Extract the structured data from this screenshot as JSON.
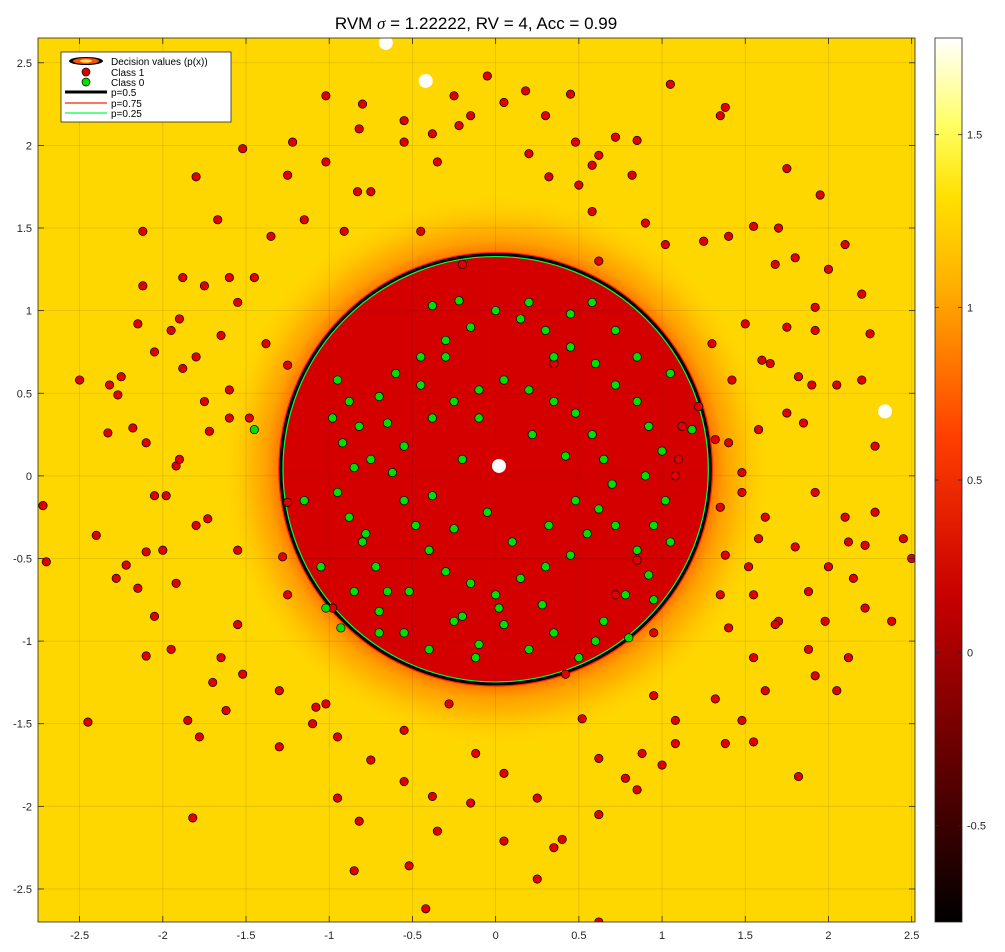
{
  "chart_data": {
    "type": "scatter",
    "title": "RVM σ = 1.22222, RV = 4, Acc = 0.99",
    "title_parts": {
      "prefix": "RVM ",
      "sigma_symbol": "σ",
      "rest": " = 1.22222, RV = 4, Acc = 0.99"
    },
    "xlim": [
      -2.75,
      2.52
    ],
    "ylim": [
      -2.7,
      2.65
    ],
    "xticks": [
      -2.5,
      -2,
      -1.5,
      -1,
      -0.5,
      0,
      0.5,
      1,
      1.5,
      2,
      2.5
    ],
    "xtick_labels": [
      "-2.5",
      "-2",
      "-1.5",
      "-1",
      "-0.5",
      "0",
      "0.5",
      "1",
      "1.5",
      "2",
      "2.5"
    ],
    "yticks": [
      -2.5,
      -2,
      -1.5,
      -1,
      -0.5,
      0,
      0.5,
      1,
      1.5,
      2,
      2.5
    ],
    "ytick_labels": [
      "-2.5",
      "-2",
      "-1.5",
      "-1",
      "-0.5",
      "0",
      "0.5",
      "1",
      "1.5",
      "2",
      "2.5"
    ],
    "grid": true,
    "legend_position": "top-left",
    "legend": [
      "Decision values (p(x))",
      "Class 1",
      "Class 0",
      "p=0.5",
      "p=0.75",
      "p=0.25"
    ],
    "colors": {
      "background_field": "#ffd700",
      "inner_field": "#d40000",
      "class1": "#e00000",
      "class0": "#00e000",
      "contour_p050": "#000000",
      "contour_p075": "#ff2000",
      "contour_p025": "#00ff40"
    },
    "decision_boundary": {
      "center": [
        0.0,
        0.04
      ],
      "radius": 1.29
    },
    "relevance_vectors": [
      [
        -0.66,
        2.62
      ],
      [
        -0.42,
        2.39
      ],
      [
        0.02,
        0.06
      ],
      [
        2.34,
        0.39
      ]
    ],
    "colorbar": {
      "range": [
        -0.78,
        1.78
      ],
      "ticks": [
        -0.5,
        0,
        0.5,
        1,
        1.5
      ],
      "tick_labels": [
        "-0.5",
        "0",
        "0.5",
        "1",
        "1.5"
      ],
      "colormap": "hot"
    },
    "class1_points": [
      [
        -0.82,
        2.1
      ],
      [
        -0.38,
        2.07
      ],
      [
        -0.91,
        1.48
      ],
      [
        -1.8,
        1.81
      ],
      [
        -2.12,
        1.48
      ],
      [
        -1.52,
        1.98
      ],
      [
        -0.83,
        1.72
      ],
      [
        -0.55,
        2.02
      ],
      [
        -1.67,
        1.55
      ],
      [
        -2.12,
        1.15
      ],
      [
        -1.9,
        0.95
      ],
      [
        -2.27,
        0.49
      ],
      [
        -2.33,
        0.26
      ],
      [
        -2.1,
        -0.46
      ],
      [
        -1.98,
        -0.12
      ],
      [
        -2.22,
        -0.54
      ],
      [
        -2.45,
        -1.49
      ],
      [
        -2.5,
        0.58
      ],
      [
        -1.73,
        -0.26
      ],
      [
        -1.55,
        -0.9
      ],
      [
        -1.62,
        -1.42
      ],
      [
        -1.78,
        -1.58
      ],
      [
        -1.3,
        -1.64
      ],
      [
        -1.08,
        -1.4
      ],
      [
        -0.95,
        -1.58
      ],
      [
        -0.82,
        -2.09
      ],
      [
        -0.38,
        -1.94
      ],
      [
        -0.52,
        -2.36
      ],
      [
        -0.12,
        -1.68
      ],
      [
        0.05,
        -2.21
      ],
      [
        0.25,
        -2.44
      ],
      [
        0.35,
        -2.25
      ],
      [
        0.62,
        -1.71
      ],
      [
        0.52,
        -1.47
      ],
      [
        0.78,
        -1.83
      ],
      [
        1.08,
        -1.62
      ],
      [
        1.32,
        -1.35
      ],
      [
        1.55,
        -1.61
      ],
      [
        1.82,
        -1.82
      ],
      [
        1.92,
        -1.21
      ],
      [
        2.12,
        -1.1
      ],
      [
        1.98,
        -0.88
      ],
      [
        2.22,
        -0.8
      ],
      [
        1.7,
        -0.88
      ],
      [
        1.35,
        -0.72
      ],
      [
        1.8,
        -0.43
      ],
      [
        1.52,
        -0.55
      ],
      [
        1.35,
        -0.19
      ],
      [
        1.48,
        0.02
      ],
      [
        1.85,
        0.32
      ],
      [
        2.2,
        0.58
      ],
      [
        1.42,
        0.58
      ],
      [
        1.6,
        0.7
      ],
      [
        1.92,
        1.02
      ],
      [
        2.25,
        0.86
      ],
      [
        1.68,
        1.28
      ],
      [
        1.55,
        1.51
      ],
      [
        1.95,
        1.7
      ],
      [
        1.75,
        1.86
      ],
      [
        1.35,
        2.18
      ],
      [
        1.05,
        2.37
      ],
      [
        0.85,
        2.03
      ],
      [
        0.45,
        2.31
      ],
      [
        0.18,
        2.33
      ],
      [
        -0.05,
        2.42
      ],
      [
        -0.15,
        2.18
      ],
      [
        0.32,
        1.81
      ],
      [
        0.62,
        1.3
      ],
      [
        1.12,
        0.3
      ],
      [
        1.32,
        0.22
      ],
      [
        1.68,
        -0.9
      ],
      [
        0.95,
        -1.33
      ],
      [
        0.88,
        -1.68
      ],
      [
        0.42,
        -1.2
      ],
      [
        -0.28,
        -1.38
      ],
      [
        -0.55,
        -1.54
      ],
      [
        -1.02,
        -1.38
      ],
      [
        -1.25,
        -0.72
      ],
      [
        -1.28,
        -0.49
      ],
      [
        -1.25,
        -0.16
      ],
      [
        -1.48,
        0.35
      ],
      [
        -1.25,
        0.67
      ],
      [
        -1.65,
        0.85
      ],
      [
        -1.72,
        0.27
      ],
      [
        -2.05,
        -0.12
      ],
      [
        -1.92,
        0.06
      ],
      [
        -2.18,
        0.29
      ],
      [
        -2.28,
        -0.62
      ],
      [
        -2.4,
        -0.36
      ],
      [
        -2.7,
        -0.52
      ],
      [
        -2.72,
        -0.18
      ],
      [
        -1.6,
        1.2
      ],
      [
        -1.6,
        0.52
      ],
      [
        -0.98,
        -0.8
      ],
      [
        0.85,
        -0.51
      ],
      [
        0.95,
        -0.95
      ],
      [
        -0.42,
        -2.62
      ],
      [
        0.62,
        -2.7
      ],
      [
        -0.85,
        -2.39
      ],
      [
        -1.82,
        -2.07
      ],
      [
        -2.1,
        -1.09
      ],
      [
        2.12,
        -0.4
      ],
      [
        2.38,
        -0.88
      ],
      [
        2.5,
        -0.5
      ],
      [
        2.45,
        -0.38
      ],
      [
        2.28,
        0.18
      ],
      [
        2.22,
        -0.42
      ],
      [
        1.02,
        1.4
      ],
      [
        0.9,
        1.53
      ],
      [
        1.4,
        1.45
      ],
      [
        1.38,
        2.23
      ],
      [
        -1.38,
        0.8
      ],
      [
        -2.32,
        0.55
      ],
      [
        -1.88,
        1.2
      ],
      [
        -1.55,
        -0.45
      ],
      [
        -1.65,
        -1.1
      ],
      [
        -1.92,
        -0.65
      ],
      [
        -1.55,
        1.05
      ],
      [
        -0.75,
        1.72
      ],
      [
        0.2,
        1.95
      ],
      [
        0.82,
        1.82
      ],
      [
        -0.2,
        1.28
      ],
      [
        -0.45,
        1.48
      ],
      [
        0.58,
        1.6
      ],
      [
        0.35,
        0.68
      ],
      [
        1.22,
        0.42
      ],
      [
        1.08,
        0.0
      ],
      [
        0.72,
        -0.72
      ],
      [
        -0.35,
        1.9
      ],
      [
        -0.22,
        2.12
      ],
      [
        -0.55,
        2.15
      ],
      [
        -0.25,
        2.3
      ],
      [
        0.05,
        2.26
      ],
      [
        0.3,
        2.18
      ],
      [
        0.48,
        2.02
      ],
      [
        0.72,
        2.05
      ],
      [
        0.62,
        1.94
      ],
      [
        0.5,
        1.76
      ],
      [
        0.58,
        1.88
      ],
      [
        1.25,
        1.42
      ],
      [
        1.7,
        1.5
      ],
      [
        2.1,
        1.4
      ],
      [
        1.8,
        1.32
      ],
      [
        2.0,
        1.25
      ],
      [
        2.2,
        1.1
      ],
      [
        1.92,
        0.88
      ],
      [
        1.65,
        0.68
      ],
      [
        1.82,
        0.6
      ],
      [
        1.3,
        0.8
      ],
      [
        1.5,
        0.92
      ],
      [
        1.75,
        0.9
      ],
      [
        1.9,
        0.55
      ],
      [
        2.05,
        0.55
      ],
      [
        1.75,
        0.38
      ],
      [
        1.58,
        0.28
      ],
      [
        1.4,
        0.2
      ],
      [
        1.1,
        0.1
      ],
      [
        1.48,
        -0.1
      ],
      [
        1.62,
        -0.25
      ],
      [
        1.92,
        -0.1
      ],
      [
        2.1,
        -0.25
      ],
      [
        2.28,
        -0.22
      ],
      [
        1.58,
        -0.38
      ],
      [
        1.38,
        -0.48
      ],
      [
        1.55,
        -0.72
      ],
      [
        1.88,
        -0.7
      ],
      [
        2.0,
        -0.55
      ],
      [
        2.15,
        -0.62
      ],
      [
        1.4,
        -0.92
      ],
      [
        1.55,
        -1.1
      ],
      [
        1.88,
        -1.05
      ],
      [
        2.05,
        -1.3
      ],
      [
        1.62,
        -1.3
      ],
      [
        1.48,
        -1.48
      ],
      [
        1.38,
        -1.62
      ],
      [
        1.08,
        -1.48
      ],
      [
        1.0,
        -1.75
      ],
      [
        0.85,
        -1.9
      ],
      [
        0.62,
        -2.05
      ],
      [
        0.4,
        -2.2
      ],
      [
        0.25,
        -1.95
      ],
      [
        0.05,
        -1.8
      ],
      [
        -0.15,
        -1.98
      ],
      [
        -0.35,
        -2.15
      ],
      [
        -0.55,
        -1.85
      ],
      [
        -0.75,
        -1.72
      ],
      [
        -0.95,
        -1.95
      ],
      [
        -1.1,
        -1.5
      ],
      [
        -1.3,
        -1.3
      ],
      [
        -1.52,
        -1.2
      ],
      [
        -1.7,
        -1.25
      ],
      [
        -1.85,
        -1.48
      ],
      [
        -1.95,
        -1.05
      ],
      [
        -2.05,
        -0.85
      ],
      [
        -2.15,
        -0.68
      ],
      [
        -2.0,
        -0.45
      ],
      [
        -1.8,
        -0.3
      ],
      [
        -1.9,
        0.1
      ],
      [
        -2.1,
        0.2
      ],
      [
        -2.25,
        0.6
      ],
      [
        -2.05,
        0.75
      ],
      [
        -1.88,
        0.65
      ],
      [
        -1.75,
        0.45
      ],
      [
        -1.6,
        0.35
      ],
      [
        -1.8,
        0.72
      ],
      [
        -1.95,
        0.88
      ],
      [
        -2.15,
        0.92
      ],
      [
        -1.75,
        1.15
      ],
      [
        -1.45,
        1.2
      ],
      [
        -1.35,
        1.45
      ],
      [
        -1.15,
        1.55
      ],
      [
        -1.25,
        1.82
      ],
      [
        -1.02,
        1.9
      ],
      [
        -0.8,
        2.25
      ],
      [
        -1.02,
        2.3
      ],
      [
        -1.22,
        2.02
      ]
    ],
    "class0_points": [
      [
        -0.95,
        0.58
      ],
      [
        -0.88,
        0.45
      ],
      [
        -0.82,
        0.3
      ],
      [
        -0.92,
        0.2
      ],
      [
        -0.85,
        0.05
      ],
      [
        -0.95,
        -0.1
      ],
      [
        -0.88,
        -0.25
      ],
      [
        -0.8,
        -0.4
      ],
      [
        -0.72,
        -0.55
      ],
      [
        -0.85,
        -0.7
      ],
      [
        -0.7,
        -0.82
      ],
      [
        -0.55,
        -0.95
      ],
      [
        -0.4,
        -1.05
      ],
      [
        -0.25,
        -0.88
      ],
      [
        -0.1,
        -1.02
      ],
      [
        0.05,
        -0.9
      ],
      [
        0.2,
        -1.05
      ],
      [
        0.35,
        -0.95
      ],
      [
        0.5,
        -1.1
      ],
      [
        0.65,
        -0.88
      ],
      [
        0.78,
        -0.72
      ],
      [
        0.92,
        -0.6
      ],
      [
        0.85,
        -0.45
      ],
      [
        0.95,
        -0.3
      ],
      [
        1.02,
        -0.15
      ],
      [
        0.9,
        0.0
      ],
      [
        1.0,
        0.15
      ],
      [
        0.92,
        0.3
      ],
      [
        0.85,
        0.45
      ],
      [
        0.72,
        0.55
      ],
      [
        0.6,
        0.68
      ],
      [
        0.45,
        0.78
      ],
      [
        0.3,
        0.88
      ],
      [
        0.15,
        0.95
      ],
      [
        0.0,
        1.0
      ],
      [
        -0.15,
        0.9
      ],
      [
        -0.3,
        0.82
      ],
      [
        -0.45,
        0.72
      ],
      [
        -0.6,
        0.62
      ],
      [
        -0.7,
        0.48
      ],
      [
        -0.65,
        0.32
      ],
      [
        -0.55,
        0.18
      ],
      [
        -0.62,
        0.02
      ],
      [
        -0.55,
        -0.15
      ],
      [
        -0.48,
        -0.3
      ],
      [
        -0.4,
        -0.45
      ],
      [
        -0.3,
        -0.58
      ],
      [
        -0.15,
        -0.65
      ],
      [
        0.0,
        -0.72
      ],
      [
        0.15,
        -0.62
      ],
      [
        0.3,
        -0.55
      ],
      [
        0.45,
        -0.48
      ],
      [
        0.55,
        -0.35
      ],
      [
        0.62,
        -0.2
      ],
      [
        0.7,
        -0.05
      ],
      [
        0.65,
        0.1
      ],
      [
        0.58,
        0.25
      ],
      [
        0.48,
        0.38
      ],
      [
        0.35,
        0.45
      ],
      [
        0.2,
        0.52
      ],
      [
        0.05,
        0.58
      ],
      [
        -0.1,
        0.52
      ],
      [
        -0.25,
        0.45
      ],
      [
        -0.38,
        0.35
      ],
      [
        -1.15,
        -0.15
      ],
      [
        -1.05,
        -0.55
      ],
      [
        -1.02,
        -0.8
      ],
      [
        -0.93,
        -0.92
      ],
      [
        -0.38,
        1.03
      ],
      [
        -0.22,
        1.06
      ],
      [
        0.2,
        1.05
      ],
      [
        0.45,
        0.98
      ],
      [
        0.58,
        1.05
      ],
      [
        0.72,
        0.88
      ],
      [
        1.05,
        0.62
      ],
      [
        1.18,
        0.28
      ],
      [
        1.05,
        -0.4
      ],
      [
        0.95,
        -0.75
      ],
      [
        0.8,
        -0.98
      ],
      [
        0.6,
        -1.0
      ],
      [
        -0.12,
        -1.1
      ],
      [
        -0.78,
        -0.35
      ],
      [
        -1.45,
        0.28
      ],
      [
        -0.05,
        -0.22
      ],
      [
        0.02,
        -0.8
      ],
      [
        -0.52,
        -0.7
      ],
      [
        -0.1,
        0.35
      ],
      [
        0.22,
        0.25
      ],
      [
        0.42,
        0.12
      ],
      [
        0.48,
        -0.15
      ],
      [
        0.32,
        -0.3
      ],
      [
        0.1,
        -0.4
      ],
      [
        -0.25,
        -0.32
      ],
      [
        -0.38,
        -0.12
      ],
      [
        -0.2,
        0.1
      ],
      [
        0.35,
        0.72
      ],
      [
        -0.7,
        -0.95
      ],
      [
        0.85,
        0.72
      ],
      [
        -0.98,
        0.35
      ],
      [
        -0.45,
        0.55
      ],
      [
        -0.75,
        0.1
      ],
      [
        -0.65,
        -0.7
      ],
      [
        0.28,
        -0.78
      ],
      [
        -0.3,
        0.72
      ],
      [
        0.72,
        -0.3
      ],
      [
        -0.2,
        -0.85
      ]
    ]
  }
}
